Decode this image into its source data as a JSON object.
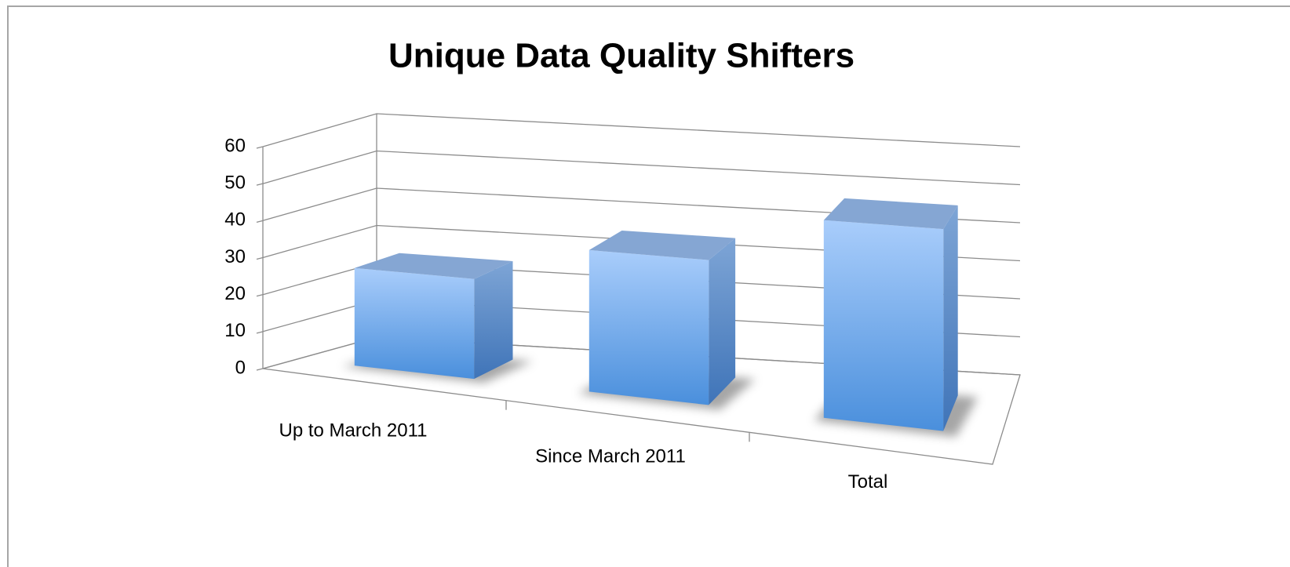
{
  "chart_data": {
    "type": "bar3d",
    "title": "Unique Data Quality Shifters",
    "categories": [
      "Up to March 2011",
      "Since March 2011",
      "Total"
    ],
    "values": [
      26,
      36,
      48
    ],
    "color": "#5b9be0",
    "ylim": [
      0,
      60
    ],
    "yticks": [
      0,
      10,
      20,
      30,
      40,
      50,
      60
    ],
    "grid": true
  }
}
